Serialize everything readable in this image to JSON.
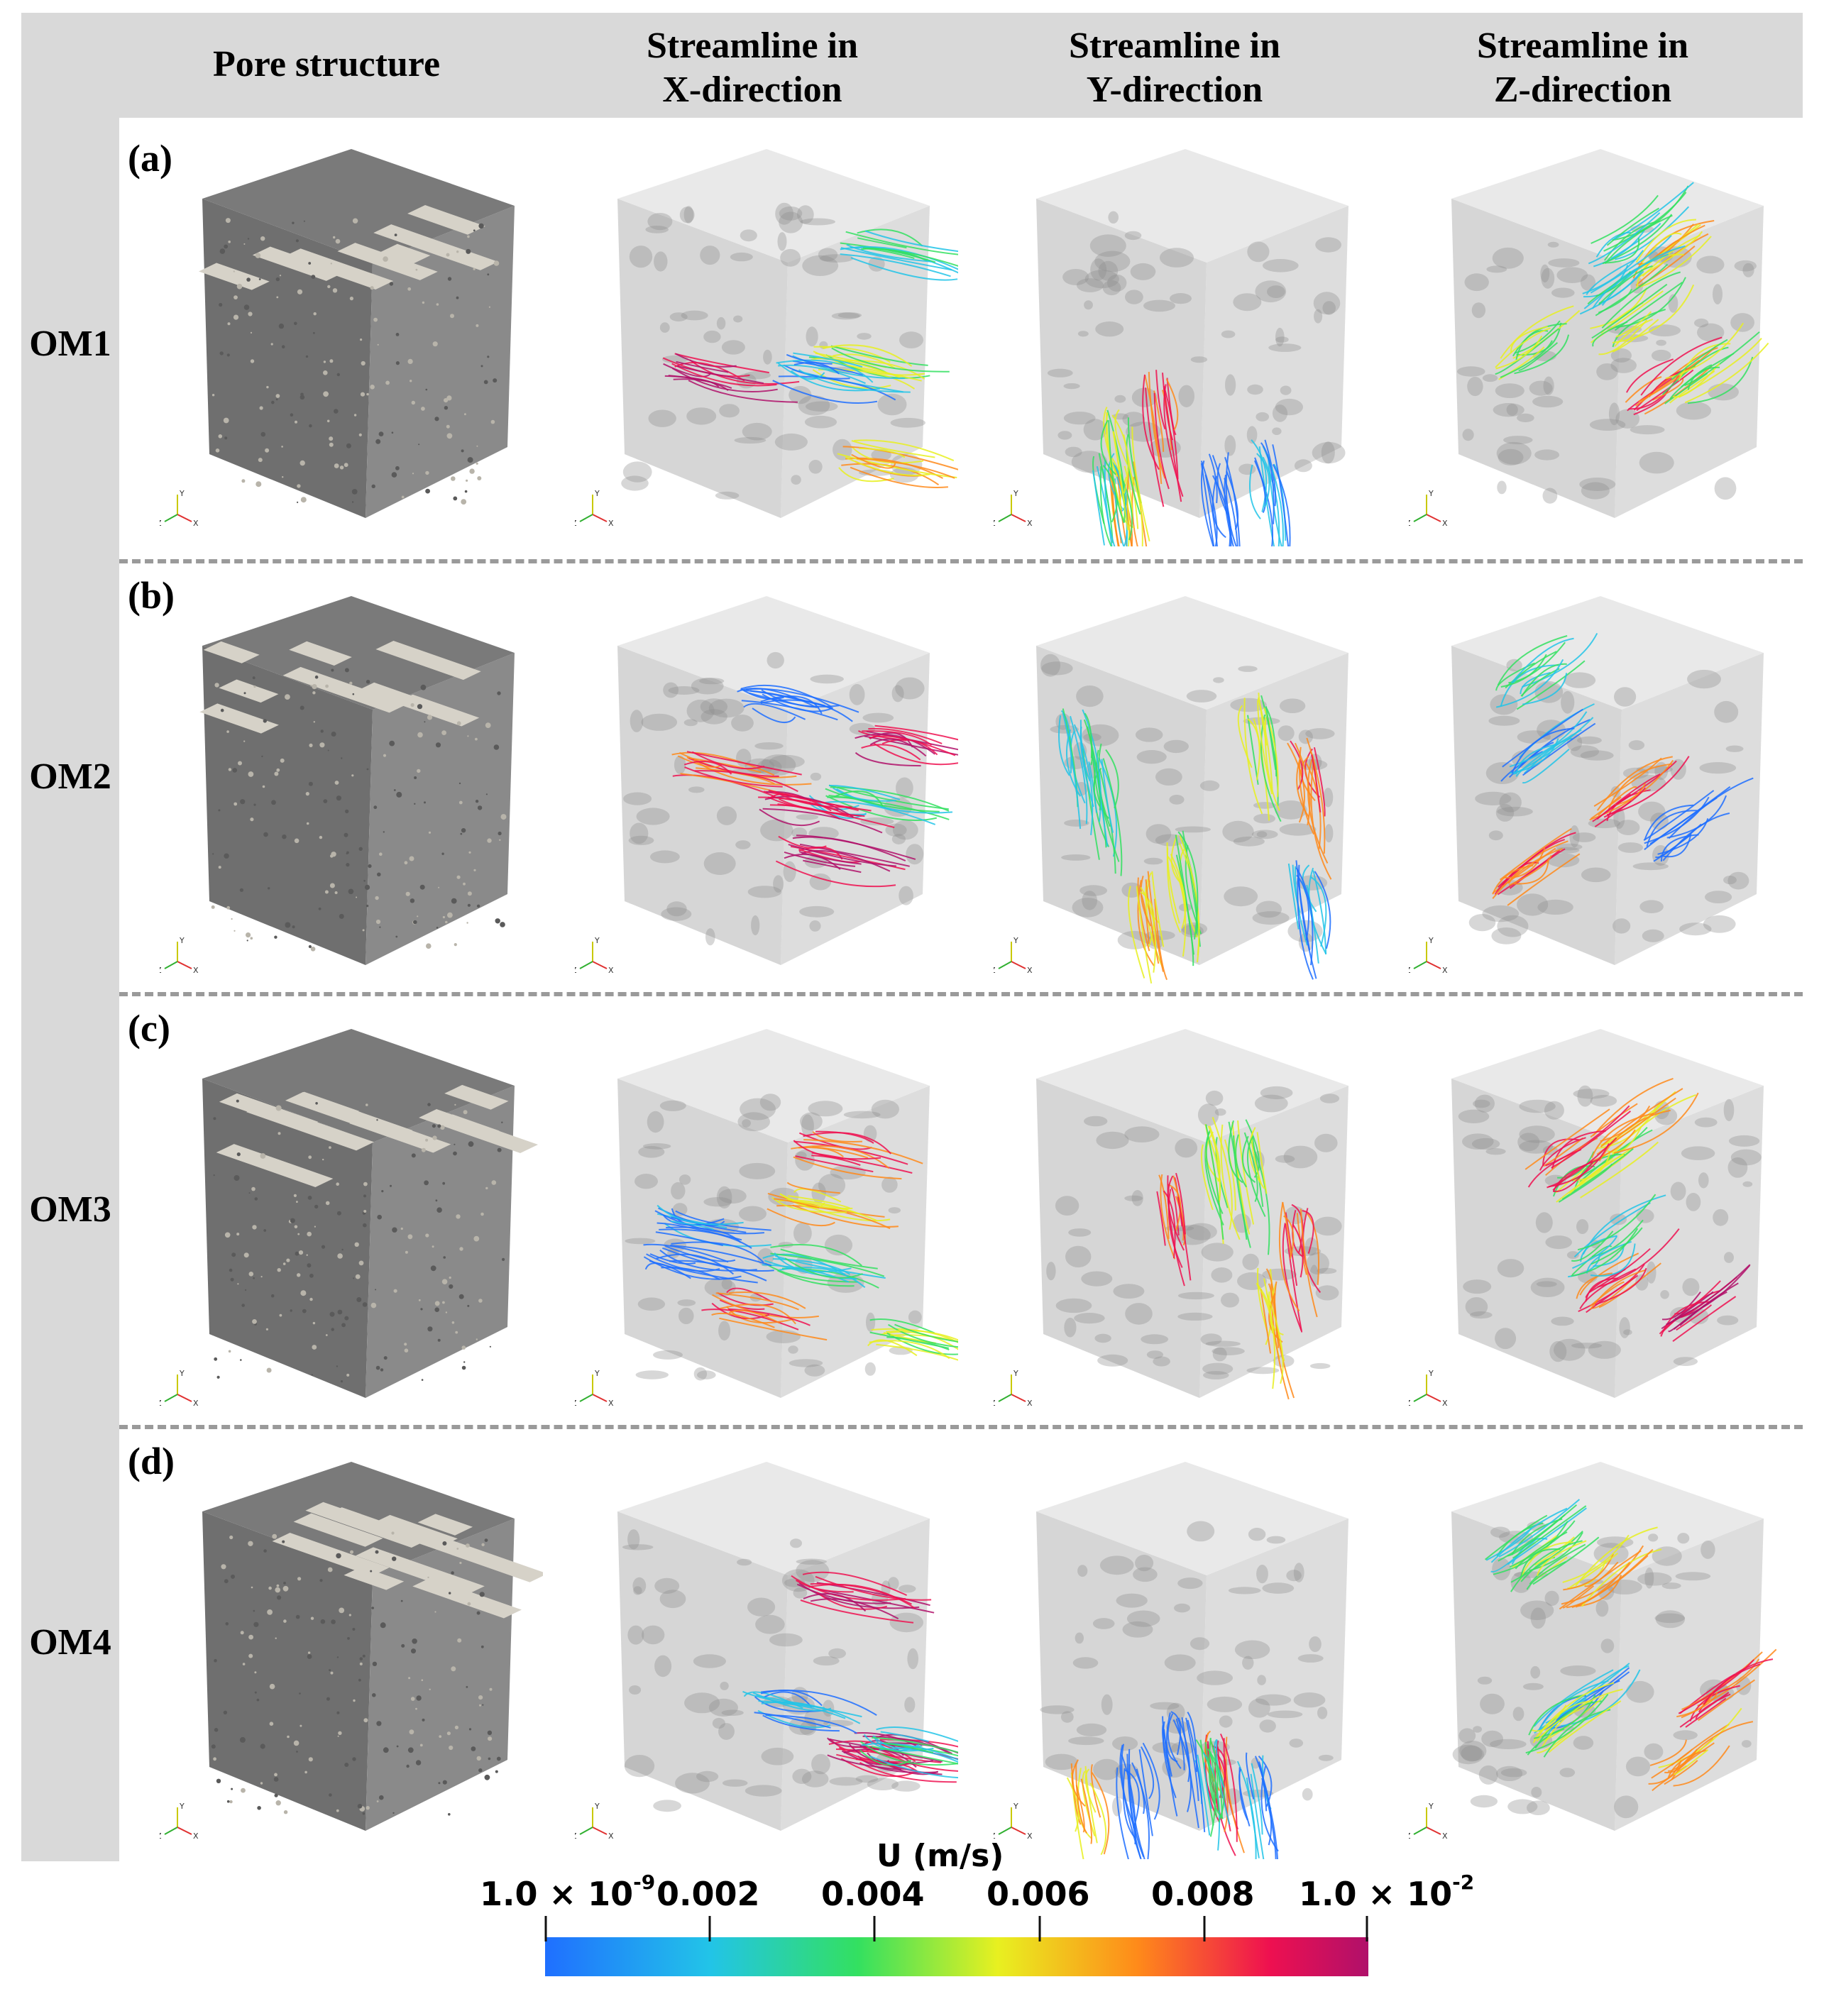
{
  "column_headers": [
    {
      "line1": "Pore structure",
      "line2": ""
    },
    {
      "line1": "Streamline in",
      "line2": "X-direction"
    },
    {
      "line1": "Streamline in",
      "line2": "Y-direction"
    },
    {
      "line1": "Streamline in",
      "line2": "Z-direction"
    }
  ],
  "rows": [
    {
      "label": "OM1",
      "panel": "(a)"
    },
    {
      "label": "OM2",
      "panel": "(b)"
    },
    {
      "label": "OM3",
      "panel": "(c)"
    },
    {
      "label": "OM4",
      "panel": "(d)"
    }
  ],
  "axes_triad": {
    "x": "X",
    "y": "Y",
    "z": "Z"
  },
  "colorbar": {
    "title": "U (m/s)",
    "ticks": [
      {
        "mantissa": "1.0",
        "times": "×",
        "base": "10",
        "exp": "-9"
      },
      {
        "text": "0.002"
      },
      {
        "text": "0.004"
      },
      {
        "text": "0.006"
      },
      {
        "text": "0.008"
      },
      {
        "mantissa": "1.0",
        "times": "×",
        "base": "10",
        "exp": "-2"
      }
    ],
    "colors": [
      "#1f6fff",
      "#22c4e8",
      "#33e060",
      "#e8f020",
      "#ff8a1a",
      "#ee1050",
      "#b0106a"
    ]
  },
  "colors": {
    "header_bg": "#d9d9d9",
    "solid_top": "#d6d2c8",
    "solid_side": "#7a7a7a",
    "box_gray": "#c8c8c8",
    "separator": "#9a9a9a"
  }
}
